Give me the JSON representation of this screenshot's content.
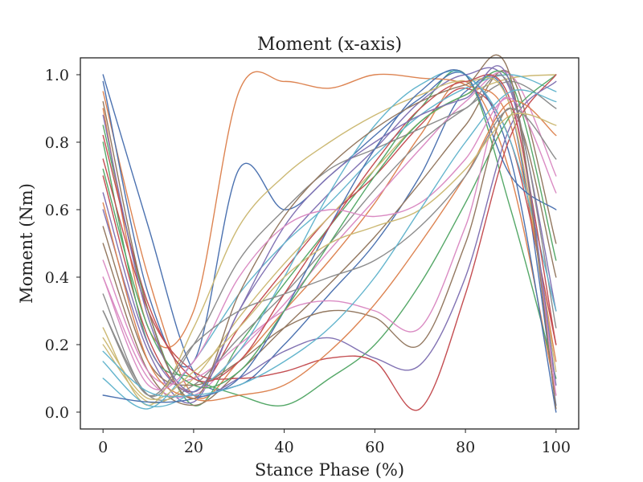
{
  "chart_data": {
    "type": "line",
    "title": "Moment (x-axis)",
    "xlabel": "Stance Phase (%)",
    "ylabel": "Moment (Nm)",
    "xlim": [
      -5,
      105
    ],
    "ylim": [
      -0.05,
      1.05
    ],
    "xticks": [
      0,
      20,
      40,
      60,
      80,
      100
    ],
    "yticks": [
      0.0,
      0.2,
      0.4,
      0.6,
      0.8,
      1.0
    ],
    "xtick_labels": [
      "0",
      "20",
      "40",
      "60",
      "80",
      "100"
    ],
    "ytick_labels": [
      "0.0",
      "0.2",
      "0.4",
      "0.6",
      "0.8",
      "1.0"
    ],
    "grid": false,
    "legend": "none",
    "palette": [
      "#4c72b0",
      "#dd8452",
      "#55a868",
      "#c44e52",
      "#8172b3",
      "#937860",
      "#da8bc3",
      "#8c8c8c",
      "#ccb974",
      "#64b5cd"
    ],
    "x": [
      0,
      10,
      20,
      30,
      40,
      50,
      60,
      70,
      80,
      90,
      100
    ],
    "series": [
      {
        "values": [
          1.0,
          0.55,
          0.12,
          0.08,
          0.2,
          0.35,
          0.5,
          0.7,
          0.95,
          0.9,
          0.02
        ]
      },
      {
        "values": [
          0.95,
          0.4,
          0.05,
          0.15,
          0.3,
          0.45,
          0.62,
          0.82,
          0.98,
          0.7,
          0.05
        ]
      },
      {
        "values": [
          0.85,
          0.3,
          0.02,
          0.2,
          0.38,
          0.55,
          0.72,
          0.9,
          1.0,
          0.6,
          0.1
        ]
      },
      {
        "values": [
          0.7,
          0.22,
          0.06,
          0.25,
          0.42,
          0.58,
          0.7,
          0.85,
          0.96,
          0.8,
          0.2
        ]
      },
      {
        "values": [
          0.6,
          0.18,
          0.03,
          0.3,
          0.5,
          0.65,
          0.78,
          0.92,
          1.0,
          0.95,
          0.3
        ]
      },
      {
        "values": [
          0.5,
          0.12,
          0.02,
          0.12,
          0.25,
          0.38,
          0.52,
          0.68,
          0.85,
          1.0,
          0.5
        ]
      },
      {
        "values": [
          0.4,
          0.1,
          0.05,
          0.18,
          0.32,
          0.48,
          0.63,
          0.78,
          0.92,
          1.0,
          0.7
        ]
      },
      {
        "values": [
          0.3,
          0.05,
          0.08,
          0.22,
          0.35,
          0.5,
          0.66,
          0.8,
          0.9,
          0.98,
          0.9
        ]
      },
      {
        "values": [
          0.2,
          0.03,
          0.1,
          0.28,
          0.44,
          0.58,
          0.72,
          0.86,
          0.94,
          0.99,
          1.0
        ]
      },
      {
        "values": [
          0.1,
          0.01,
          0.15,
          0.35,
          0.5,
          0.62,
          0.76,
          0.88,
          0.96,
          1.0,
          0.95
        ]
      },
      {
        "values": [
          0.98,
          0.35,
          0.15,
          0.72,
          0.6,
          0.7,
          0.82,
          0.93,
          1.0,
          0.75,
          0.0
        ]
      },
      {
        "values": [
          0.9,
          0.25,
          0.3,
          0.95,
          0.98,
          0.96,
          1.0,
          0.99,
          0.97,
          0.85,
          0.15
        ]
      },
      {
        "values": [
          0.8,
          0.2,
          0.1,
          0.05,
          0.02,
          0.1,
          0.2,
          0.38,
          0.62,
          0.88,
          1.0
        ]
      },
      {
        "values": [
          0.75,
          0.3,
          0.12,
          0.1,
          0.12,
          0.16,
          0.15,
          0.01,
          0.35,
          0.82,
          1.0
        ]
      },
      {
        "values": [
          0.65,
          0.2,
          0.05,
          0.1,
          0.18,
          0.22,
          0.16,
          0.14,
          0.4,
          0.85,
          0.98
        ]
      },
      {
        "values": [
          0.55,
          0.15,
          0.08,
          0.15,
          0.25,
          0.3,
          0.28,
          0.2,
          0.5,
          0.9,
          0.4
        ]
      },
      {
        "values": [
          0.45,
          0.12,
          0.1,
          0.2,
          0.3,
          0.33,
          0.3,
          0.25,
          0.55,
          0.92,
          0.05
        ]
      },
      {
        "values": [
          0.35,
          0.05,
          0.2,
          0.45,
          0.6,
          0.72,
          0.78,
          0.84,
          0.9,
          0.96,
          0.25
        ]
      },
      {
        "values": [
          0.25,
          0.02,
          0.25,
          0.55,
          0.7,
          0.8,
          0.88,
          0.94,
          0.98,
          0.9,
          0.12
        ]
      },
      {
        "values": [
          0.15,
          0.02,
          0.06,
          0.18,
          0.4,
          0.65,
          0.85,
          0.97,
          1.0,
          0.8,
          0.3
        ]
      },
      {
        "values": [
          0.05,
          0.03,
          0.04,
          0.1,
          0.3,
          0.55,
          0.78,
          0.95,
          1.0,
          0.7,
          0.6
        ]
      },
      {
        "values": [
          0.62,
          0.15,
          0.04,
          0.05,
          0.08,
          0.18,
          0.32,
          0.5,
          0.7,
          0.92,
          0.82
        ]
      },
      {
        "values": [
          0.72,
          0.25,
          0.08,
          0.12,
          0.3,
          0.5,
          0.7,
          0.86,
          0.94,
          0.98,
          0.45
        ]
      },
      {
        "values": [
          0.82,
          0.32,
          0.1,
          0.15,
          0.35,
          0.55,
          0.74,
          0.9,
          0.98,
          0.92,
          0.2
        ]
      },
      {
        "values": [
          0.88,
          0.28,
          0.06,
          0.3,
          0.55,
          0.7,
          0.8,
          0.88,
          0.93,
          0.97,
          0.08
        ]
      },
      {
        "values": [
          0.92,
          0.3,
          0.04,
          0.35,
          0.58,
          0.73,
          0.84,
          0.92,
          0.97,
          0.99,
          0.01
        ]
      },
      {
        "values": [
          0.4,
          0.08,
          0.15,
          0.4,
          0.55,
          0.6,
          0.58,
          0.62,
          0.75,
          0.93,
          0.65
        ]
      },
      {
        "values": [
          0.3,
          0.05,
          0.2,
          0.3,
          0.35,
          0.4,
          0.45,
          0.55,
          0.7,
          0.9,
          0.75
        ]
      },
      {
        "values": [
          0.22,
          0.04,
          0.12,
          0.25,
          0.4,
          0.5,
          0.55,
          0.6,
          0.72,
          0.88,
          0.85
        ]
      },
      {
        "values": [
          0.18,
          0.06,
          0.05,
          0.08,
          0.15,
          0.25,
          0.4,
          0.6,
          0.8,
          0.95,
          0.92
        ]
      }
    ]
  }
}
